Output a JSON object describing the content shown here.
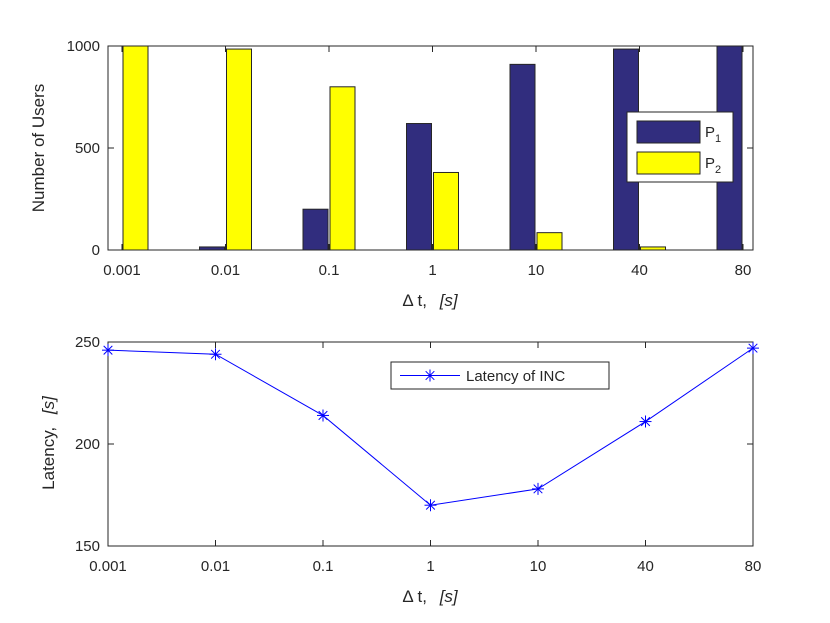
{
  "chart_data": [
    {
      "type": "bar",
      "categories": [
        "0.001",
        "0.01",
        "0.1",
        "1",
        "10",
        "40",
        "80"
      ],
      "series": [
        {
          "name": "P1",
          "label_main": "P",
          "label_sub": "1",
          "color": "#312D7E",
          "values": [
            0,
            15,
            200,
            620,
            910,
            985,
            1000
          ]
        },
        {
          "name": "P2",
          "label_main": "P",
          "label_sub": "2",
          "color": "#FFFF00",
          "values": [
            1000,
            985,
            800,
            380,
            85,
            15,
            0
          ]
        }
      ],
      "ylim": [
        0,
        1000
      ],
      "yticks": [
        0,
        500,
        1000
      ],
      "ylabel": "Number of Users",
      "xlabel_main": "Δ t,",
      "xlabel_unit": "[s]",
      "legend_position": "right"
    },
    {
      "type": "line",
      "categories": [
        "0.001",
        "0.01",
        "0.1",
        "1",
        "10",
        "40",
        "80"
      ],
      "series": [
        {
          "name": "Latency of INC",
          "color": "#0000FF",
          "values": [
            246,
            244,
            214,
            170,
            178,
            211,
            247
          ]
        }
      ],
      "ylim": [
        150,
        250
      ],
      "yticks": [
        150,
        200,
        250
      ],
      "ylabel_main": "Latency,",
      "ylabel_unit": "[s]",
      "xlabel_main": "Δ t,",
      "xlabel_unit": "[s]",
      "legend_position": "top-center"
    }
  ]
}
